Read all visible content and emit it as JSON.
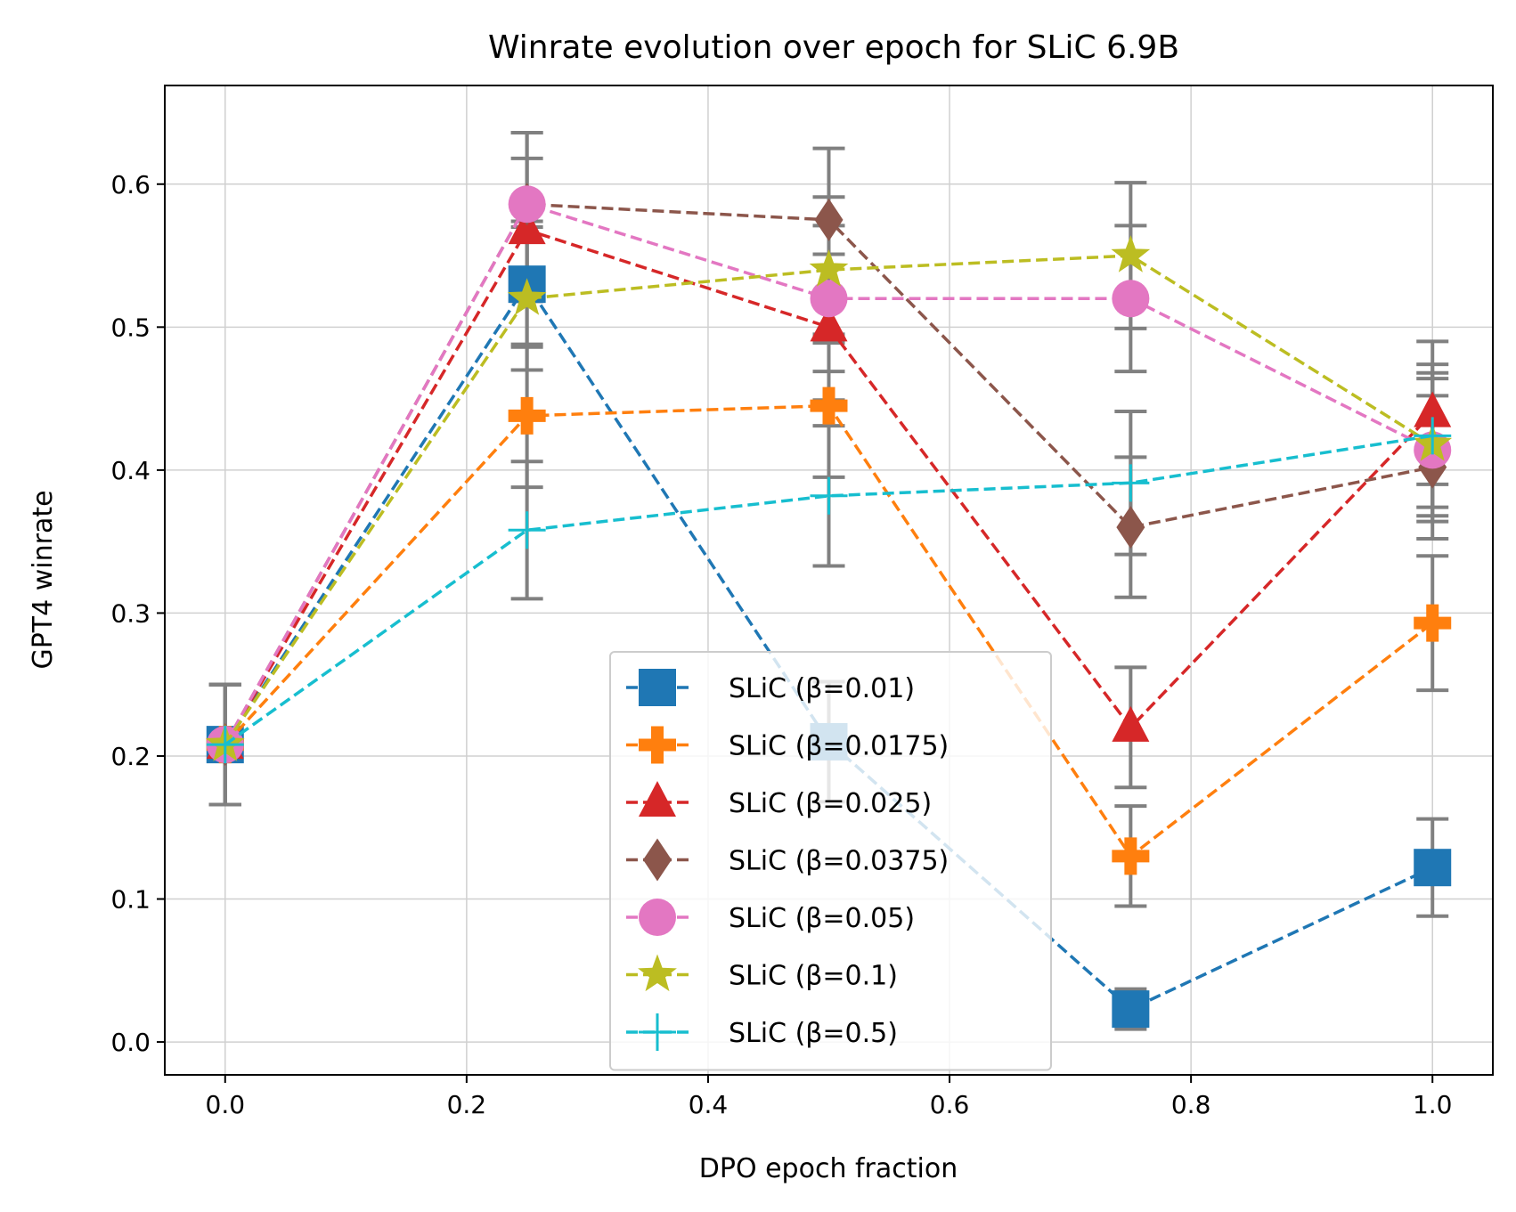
{
  "chart_data": {
    "type": "line",
    "title": "Winrate evolution over epoch for SLiC 6.9B",
    "xlabel": "DPO epoch fraction",
    "ylabel": "GPT4 winrate",
    "xlim": [
      -0.05,
      1.05
    ],
    "ylim": [
      -0.023,
      0.669
    ],
    "xticks": [
      0.0,
      0.2,
      0.4,
      0.6,
      0.8,
      1.0
    ],
    "xtick_labels": [
      "0.0",
      "0.2",
      "0.4",
      "0.6",
      "0.8",
      "1.0"
    ],
    "yticks": [
      0.0,
      0.1,
      0.2,
      0.3,
      0.4,
      0.5,
      0.6
    ],
    "ytick_labels": [
      "0.0",
      "0.1",
      "0.2",
      "0.3",
      "0.4",
      "0.5",
      "0.6"
    ],
    "grid": true,
    "legend_position": "lower-center",
    "x": [
      0.0,
      0.25,
      0.5,
      0.75,
      1.0
    ],
    "error_bar_color": "#808080",
    "series": [
      {
        "name": "SLiC (β=0.01)",
        "color": "#1f77b4",
        "marker": "square",
        "values": [
          0.208,
          0.53,
          0.21,
          0.023,
          0.122
        ],
        "errors": [
          0.042,
          0.044,
          0.042,
          0.014,
          0.034
        ]
      },
      {
        "name": "SLiC (β=0.0175)",
        "color": "#ff7f0e",
        "marker": "plus-filled",
        "values": [
          0.208,
          0.438,
          0.445,
          0.13,
          0.293
        ],
        "errors": [
          0.042,
          0.05,
          0.05,
          0.035,
          0.047
        ]
      },
      {
        "name": "SLiC (β=0.025)",
        "color": "#d62728",
        "marker": "triangle",
        "values": [
          0.208,
          0.568,
          0.5,
          0.22,
          0.44
        ],
        "errors": [
          0.042,
          0.05,
          0.051,
          0.042,
          0.05
        ]
      },
      {
        "name": "SLiC (β=0.0375)",
        "color": "#8c564b",
        "marker": "diamond",
        "values": [
          0.208,
          0.586,
          0.575,
          0.36,
          0.402
        ],
        "errors": [
          0.042,
          0.05,
          0.05,
          0.049,
          0.05
        ]
      },
      {
        "name": "SLiC (β=0.05)",
        "color": "#e377c2",
        "marker": "circle",
        "values": [
          0.208,
          0.586,
          0.52,
          0.52,
          0.414
        ],
        "errors": [
          0.042,
          0.05,
          0.051,
          0.051,
          0.05
        ]
      },
      {
        "name": "SLiC (β=0.1)",
        "color": "#bcbd22",
        "marker": "star",
        "values": [
          0.208,
          0.52,
          0.54,
          0.55,
          0.418
        ],
        "errors": [
          0.042,
          0.05,
          0.051,
          0.051,
          0.05
        ]
      },
      {
        "name": "SLiC (β=0.5)",
        "color": "#17becf",
        "marker": "plus",
        "values": [
          0.208,
          0.358,
          0.382,
          0.391,
          0.424
        ],
        "errors": [
          0.042,
          0.048,
          0.049,
          0.05,
          0.05
        ]
      }
    ]
  }
}
